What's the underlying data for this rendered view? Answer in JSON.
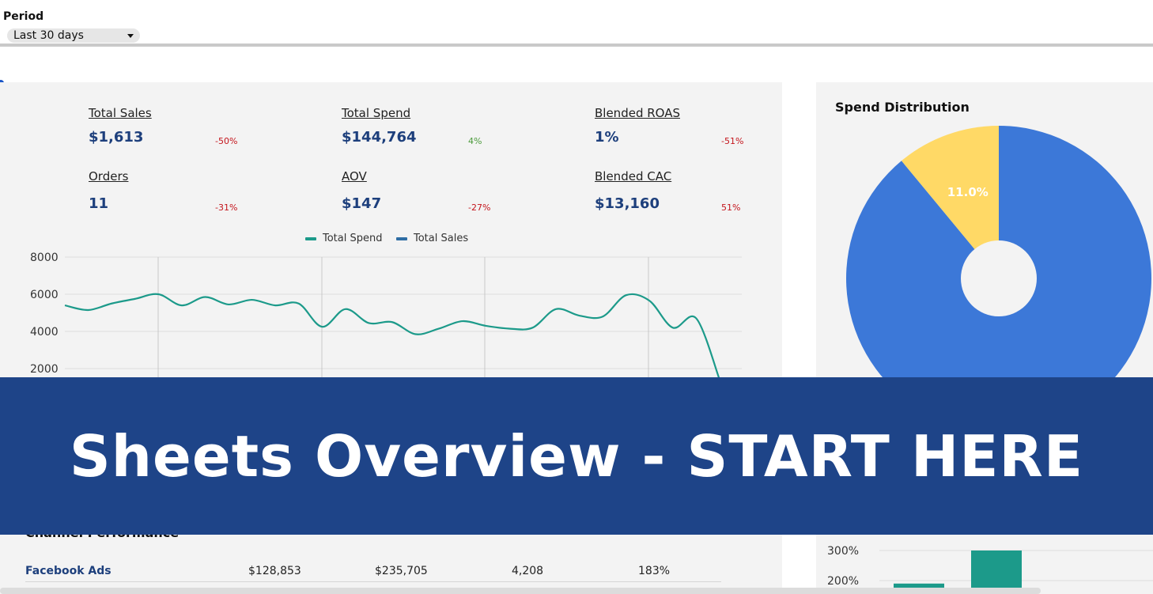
{
  "filter": {
    "label": "Period",
    "selected": "Last 30 days"
  },
  "kpis": [
    {
      "label": "Total Sales",
      "value": "$1,613",
      "delta": "-50%",
      "trend": "neg"
    },
    {
      "label": "Total Spend",
      "value": "$144,764",
      "delta": "4%",
      "trend": "pos"
    },
    {
      "label": "Blended ROAS",
      "value": "1%",
      "delta": "-51%",
      "trend": "neg"
    },
    {
      "label": "Orders",
      "value": "11",
      "delta": "-31%",
      "trend": "neg"
    },
    {
      "label": "AOV",
      "value": "$147",
      "delta": "-27%",
      "trend": "neg"
    },
    {
      "label": "Blended CAC",
      "value": "$13,160",
      "delta": "51%",
      "trend": "neg"
    }
  ],
  "chart_data": [
    {
      "type": "line",
      "series": [
        {
          "name": "Total Spend",
          "color": "#1c9a8a",
          "values": [
            5400,
            5150,
            5500,
            5750,
            6000,
            5400,
            5850,
            5450,
            5700,
            5400,
            5500,
            4250,
            5200,
            4450,
            4500,
            3850,
            4150,
            4550,
            4300,
            4150,
            4200,
            5200,
            4850,
            4800,
            5950,
            5650,
            4200,
            4700,
            1400
          ]
        },
        {
          "name": "Total Sales",
          "color": "#2e6da4",
          "values": []
        }
      ],
      "y_ticks": [
        "8000",
        "6000",
        "4000",
        "2000"
      ],
      "ylim": [
        0,
        8000
      ],
      "grid": true,
      "legend": "top"
    },
    {
      "type": "pie",
      "title": "Spend Distribution",
      "slices": [
        {
          "value": 89.0,
          "color": "#3c78d8"
        },
        {
          "value": 11.0,
          "label": "11.0%",
          "color": "#ffd966"
        }
      ]
    },
    {
      "type": "bar",
      "y_ticks": [
        "300%",
        "200%"
      ],
      "values": [
        190,
        300
      ],
      "color": "#1c9a8a",
      "ylim": [
        0,
        400
      ]
    }
  ],
  "banner": {
    "text": "Sheets Overview - START HERE"
  },
  "channels": {
    "title": "Channel Performance",
    "rows": [
      {
        "name": "Facebook Ads",
        "c1": "$128,853",
        "c2": "$235,705",
        "c3": "4,208",
        "c4": "183%"
      }
    ]
  }
}
